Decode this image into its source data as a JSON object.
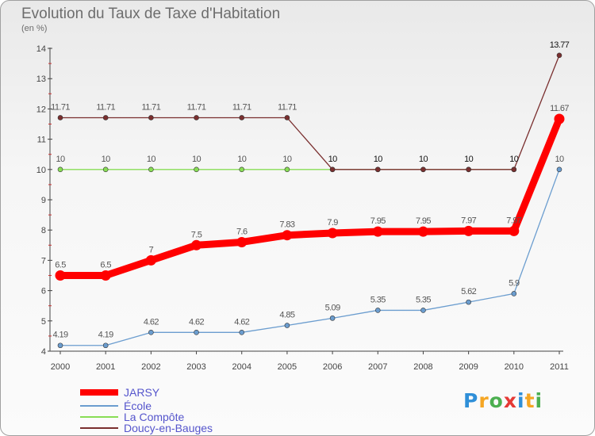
{
  "chart_data": {
    "type": "line",
    "title": "Evolution du Taux de Taxe d'Habitation",
    "subtitle": "(en %)",
    "x": [
      "2000",
      "2001",
      "2002",
      "2003",
      "2004",
      "2005",
      "2006",
      "2007",
      "2008",
      "2009",
      "2010",
      "2011"
    ],
    "y_ticks": [
      "4",
      "5",
      "6",
      "7",
      "8",
      "9",
      "10",
      "11",
      "12",
      "13",
      "14"
    ],
    "ylim": [
      4,
      14
    ],
    "grid": false,
    "legend_position": "bottom-left",
    "series": [
      {
        "name": "JARSY",
        "color": "#ff0000",
        "values": [
          6.5,
          6.5,
          7,
          7.5,
          7.6,
          7.83,
          7.9,
          7.95,
          7.95,
          7.97,
          7.97,
          11.67
        ],
        "labels": [
          "6.5",
          "6.5",
          "7",
          "7.5",
          "7.6",
          "7.83",
          "7.9",
          "7.95",
          "7.95",
          "7.97",
          "7.97",
          "11.67"
        ]
      },
      {
        "name": "École",
        "color": "#6b9dcf",
        "values": [
          4.19,
          4.19,
          4.62,
          4.62,
          4.62,
          4.85,
          5.09,
          5.35,
          5.35,
          5.62,
          5.9,
          10
        ],
        "labels": [
          "4.19",
          "4.19",
          "4.62",
          "4.62",
          "4.62",
          "4.85",
          "5.09",
          "5.35",
          "5.35",
          "5.62",
          "5.9",
          "10"
        ]
      },
      {
        "name": "La Compôte",
        "color": "#88dd55",
        "values": [
          10,
          10,
          10,
          10,
          10,
          10,
          10,
          10,
          10,
          10,
          10,
          null
        ],
        "labels": [
          "10",
          "10",
          "10",
          "10",
          "10",
          "10",
          "",
          "",
          "",
          "",
          "",
          ""
        ]
      },
      {
        "name": "Doucy-en-Bauges",
        "color": "#7a2f2f",
        "values": [
          11.71,
          11.71,
          11.71,
          11.71,
          11.71,
          11.71,
          10,
          10,
          10,
          10,
          10,
          13.77
        ],
        "labels": [
          "11.71",
          "11.71",
          "11.71",
          "11.71",
          "11.71",
          "11.71",
          "10",
          "10",
          "10",
          "10",
          "10",
          "13.77"
        ]
      }
    ]
  },
  "brand": {
    "letters": [
      "P",
      "r",
      "o",
      "x",
      "i",
      "t",
      "i"
    ],
    "colors": [
      "#2f8fd8",
      "#f5a623",
      "#4caf50",
      "#e53935",
      "#2f8fd8",
      "#f5a623",
      "#4caf50"
    ]
  }
}
